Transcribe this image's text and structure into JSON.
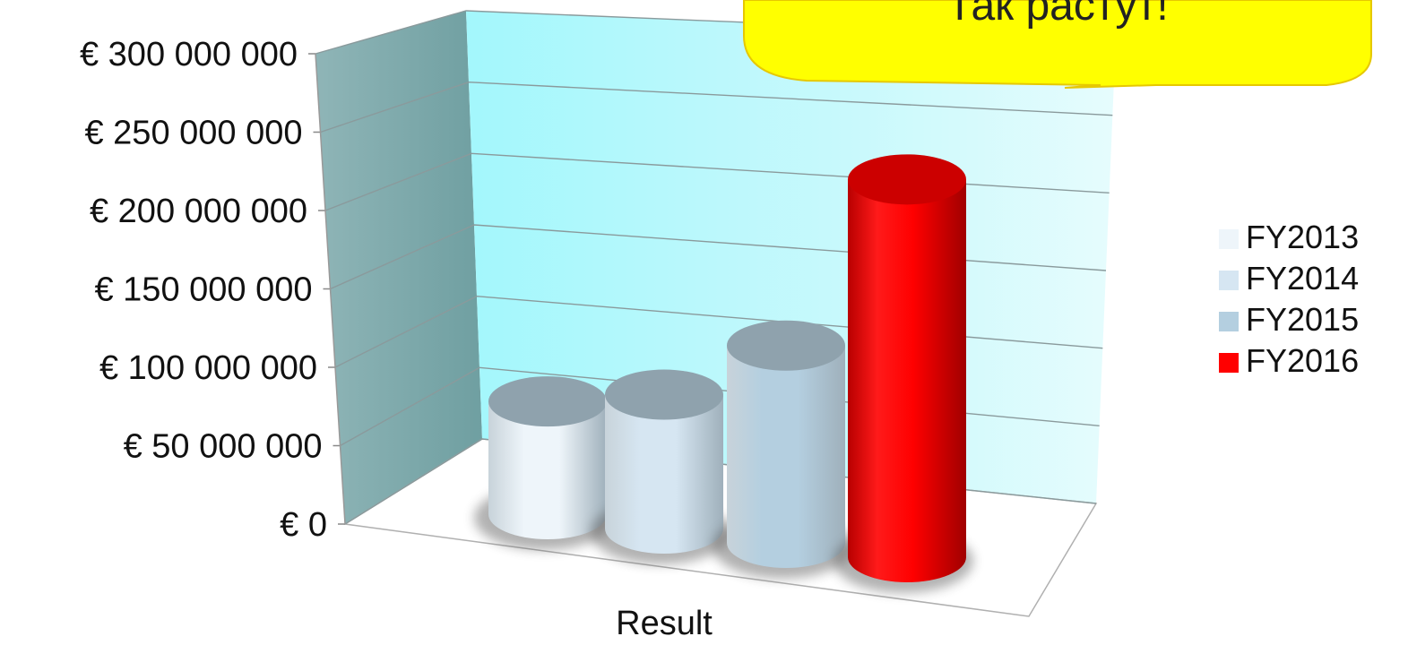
{
  "chart_data": {
    "type": "bar",
    "style": "3d-cylinder",
    "categories": [
      "Result"
    ],
    "series": [
      {
        "name": "FY2013",
        "values": [
          80000000
        ],
        "color": "#eef5fa"
      },
      {
        "name": "FY2014",
        "values": [
          95000000
        ],
        "color": "#d6e6f2"
      },
      {
        "name": "FY2015",
        "values": [
          140000000
        ],
        "color": "#b4cfe0"
      },
      {
        "name": "FY2016",
        "values": [
          268000000
        ],
        "color": "#ff0000"
      }
    ],
    "y_ticks": [
      "€ 0",
      "€ 50 000 000",
      "€ 100 000 000",
      "€ 150 000 000",
      "€ 200 000 000",
      "€ 250 000 000",
      "€ 300 000 000"
    ],
    "ylim": [
      0,
      300000000
    ],
    "xlabel": "",
    "ylabel": "",
    "grid": true,
    "legend_position": "right",
    "wall_color": "#a6f6fb",
    "side_wall_color": "#7aa6a8"
  },
  "callout": {
    "text": "Так растут!",
    "fill": "#ffff00"
  }
}
